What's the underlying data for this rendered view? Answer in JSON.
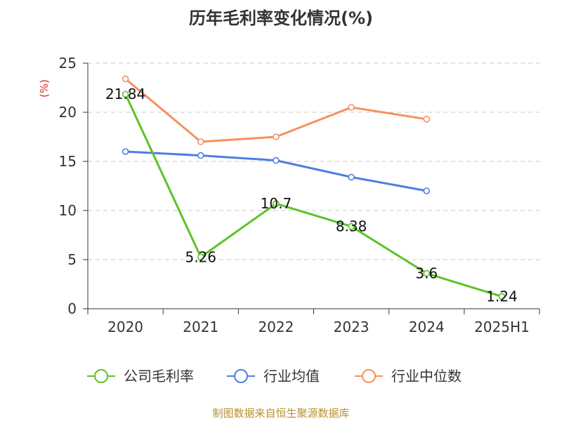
{
  "chart_data": {
    "type": "line",
    "title": "历年毛利率变化情况(%)",
    "ylabel": "(%)",
    "categories": [
      "2020",
      "2021",
      "2022",
      "2023",
      "2024",
      "2025H1"
    ],
    "ylim": [
      0,
      25
    ],
    "yticks": [
      "0",
      "5",
      "10",
      "15",
      "20",
      "25"
    ],
    "grid": true,
    "legend_position": "bottom",
    "series": [
      {
        "name": "公司毛利率",
        "color": "#5cc229",
        "values": [
          21.84,
          5.26,
          10.7,
          8.38,
          3.6,
          1.24
        ],
        "labels": [
          "21.84",
          "5.26",
          "10.7",
          "8.38",
          "3.6",
          "1.24"
        ]
      },
      {
        "name": "行业均值",
        "color": "#4d7ee0",
        "values": [
          16.0,
          15.6,
          15.1,
          13.4,
          12.0,
          null
        ]
      },
      {
        "name": "行业中位数",
        "color": "#f7905d",
        "values": [
          23.4,
          17.0,
          17.5,
          20.5,
          19.3,
          null
        ]
      }
    ]
  },
  "source_text": "制图数据来自恒生聚源数据库"
}
